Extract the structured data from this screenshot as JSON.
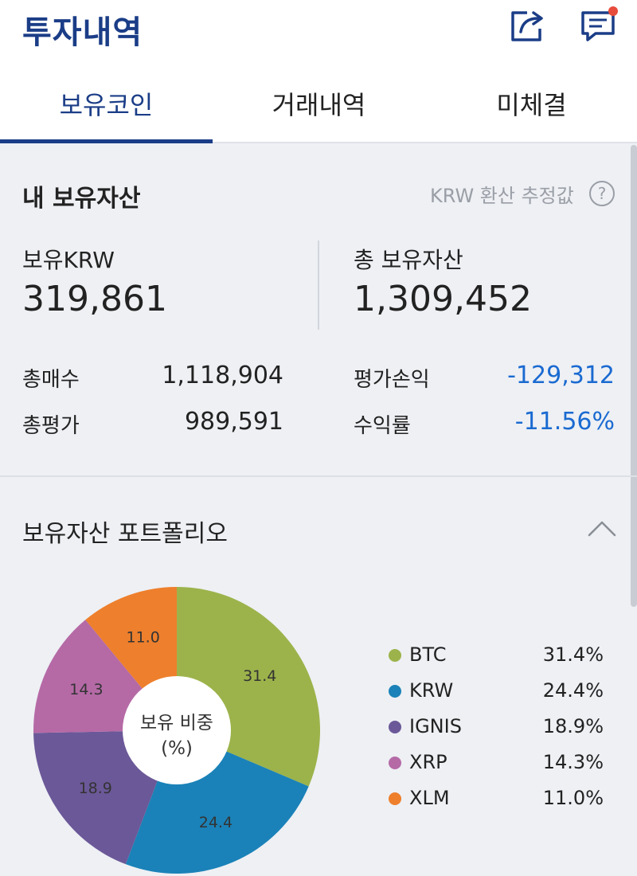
{
  "header": {
    "title": "투자내역",
    "share_icon": "share-icon",
    "chat_icon": "chat-icon",
    "notification_color": "#e74c3c"
  },
  "tabs": [
    {
      "label": "보유코인",
      "active": true
    },
    {
      "label": "거래내역",
      "active": false
    },
    {
      "label": "미체결",
      "active": false
    }
  ],
  "assets": {
    "title": "내 보유자산",
    "hint": "KRW 환산 추정값",
    "hint_icon": "?",
    "krw_label": "보유KRW",
    "krw_value": "319,861",
    "total_label": "총 보유자산",
    "total_value": "1,309,452",
    "rows": [
      {
        "label": "총매수",
        "value": "1,118,904"
      },
      {
        "label": "총평가",
        "value": "989,591"
      },
      {
        "label": "평가손익",
        "value": "-129,312"
      },
      {
        "label": "수익률",
        "value": "-11.56%"
      }
    ]
  },
  "portfolio": {
    "title": "보유자산 포트폴리오",
    "center_label_1": "보유 비중",
    "center_label_2": "(%)"
  },
  "colors": {
    "brand": "#1b3d87",
    "negative": "#1a6ad1"
  },
  "chart_data": {
    "type": "pie",
    "categories": [
      "BTC",
      "KRW",
      "IGNIS",
      "XRP",
      "XLM"
    ],
    "values": [
      31.4,
      24.4,
      18.9,
      14.3,
      11.0
    ],
    "labels": [
      "31.4",
      "24.4",
      "18.9",
      "14.3",
      "11.0"
    ],
    "legend_pct": [
      "31.4%",
      "24.4%",
      "18.9%",
      "14.3%",
      "11.0%"
    ],
    "colors": [
      "#9cb34b",
      "#1a82b8",
      "#6b5898",
      "#b56aa6",
      "#ee7f2c"
    ],
    "legend": "right"
  }
}
